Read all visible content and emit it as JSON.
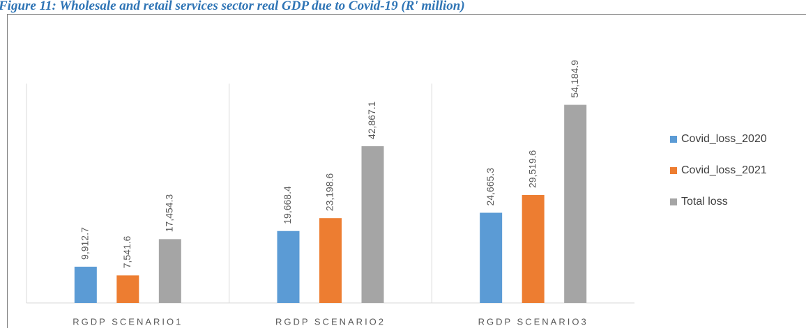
{
  "chart_data": {
    "type": "bar",
    "title": "Figure 11: Wholesale and retail services sector real GDP due to Covid-19 (R' million)",
    "categories": [
      "RGDP SCENARIO1",
      "RGDP SCENARIO2",
      "RGDP SCENARIO3"
    ],
    "series": [
      {
        "name": "Covid_loss_2020",
        "color": "#5b9bd5",
        "values": [
          9912.7,
          19668.4,
          24665.3
        ],
        "value_labels": [
          "9,912.7",
          "19,668.4",
          "24,665.3"
        ]
      },
      {
        "name": "Covid_loss_2021",
        "color": "#ed7d31",
        "values": [
          7541.6,
          23198.6,
          29519.6
        ],
        "value_labels": [
          "7,541.6",
          "23,198.6",
          "29,519.6"
        ]
      },
      {
        "name": "Total loss",
        "color": "#a5a5a5",
        "values": [
          17454.3,
          42867.1,
          54184.9
        ],
        "value_labels": [
          "17,454.3",
          "42,867.1",
          "54,184.9"
        ]
      }
    ],
    "ylim": [
      0,
      60000
    ],
    "legend": "right"
  }
}
